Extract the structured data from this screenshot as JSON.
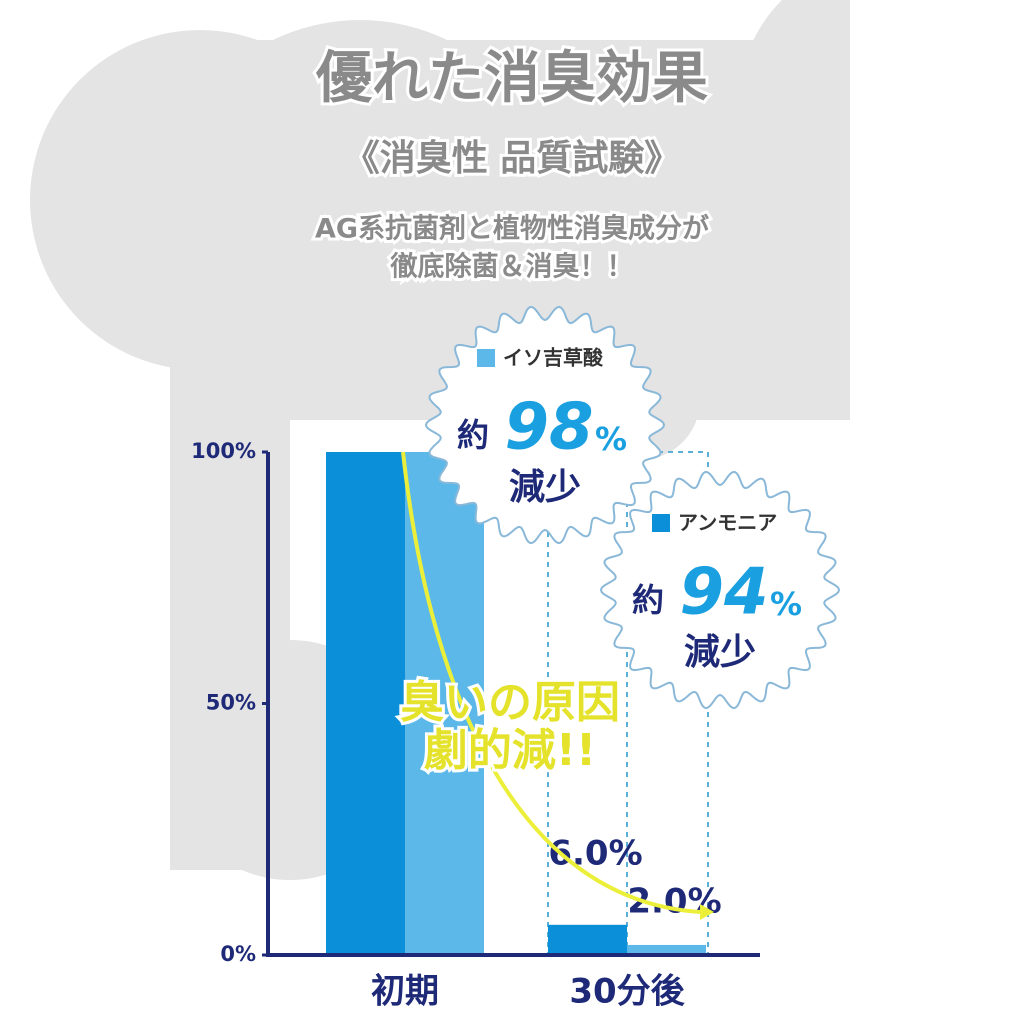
{
  "chart_data": {
    "type": "bar",
    "title": "優れた消臭効果",
    "subtitle": "《消臭性 品質試験》",
    "description": [
      "AG系抗菌剤と植物性消臭成分が",
      "徹底除菌＆消臭！！"
    ],
    "annotation": [
      "臭いの原因",
      "劇的減!!"
    ],
    "categories": [
      "初期",
      "30分後"
    ],
    "series": [
      {
        "name": "アンモニア",
        "color": "#0a8fd8",
        "values": [
          100,
          6.0
        ],
        "value_labels": [
          null,
          "6.0%"
        ],
        "reduction": {
          "prefix": "約",
          "value": 94,
          "unit": "%",
          "suffix": "減少"
        }
      },
      {
        "name": "イソ吉草酸",
        "color": "#5bb8e8",
        "values": [
          100,
          2.0
        ],
        "value_labels": [
          null,
          "2.0%"
        ],
        "reduction": {
          "prefix": "約",
          "value": 98,
          "unit": "%",
          "suffix": "減少"
        }
      }
    ],
    "ylim": [
      0,
      100
    ],
    "yticks": [
      {
        "value": 0,
        "label": "0%"
      },
      {
        "value": 50,
        "label": "50%"
      },
      {
        "value": 100,
        "label": "100%"
      }
    ]
  }
}
